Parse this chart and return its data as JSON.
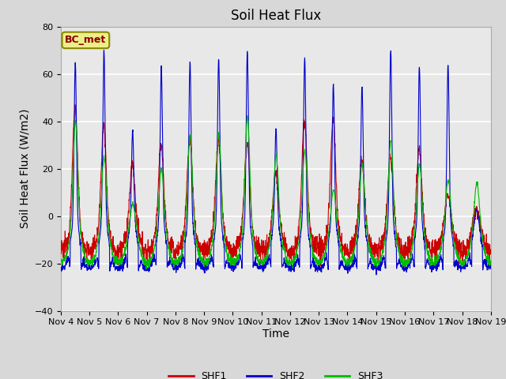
{
  "title": "Soil Heat Flux",
  "ylabel": "Soil Heat Flux (W/m2)",
  "xlabel": "Time",
  "ylim": [
    -40,
    80
  ],
  "yticks": [
    -40,
    -20,
    0,
    20,
    40,
    60,
    80
  ],
  "colors": {
    "SHF1": "#cc0000",
    "SHF2": "#0000cc",
    "SHF3": "#00bb00"
  },
  "legend_label": "BC_met",
  "legend_box_facecolor": "#eeee88",
  "legend_box_edgecolor": "#888800",
  "legend_text_color": "#880000",
  "plot_bg_color": "#e8e8e8",
  "fig_bg_color": "#d8d8d8",
  "grid_color": "#ffffff",
  "start_day": 4,
  "end_day": 19,
  "num_days": 15,
  "points_per_day": 144,
  "title_fontsize": 12,
  "axis_label_fontsize": 10,
  "tick_fontsize": 8,
  "day_peaks_shf2": [
    65,
    70,
    36,
    63,
    65,
    67,
    70,
    37,
    67,
    56,
    55,
    70,
    63,
    64,
    3
  ],
  "day_peaks_shf1": [
    46,
    38,
    22,
    30,
    33,
    32,
    31,
    18,
    41,
    41,
    24,
    25,
    28,
    9,
    3
  ],
  "day_peaks_shf3": [
    40,
    25,
    5,
    20,
    34,
    35,
    42,
    26,
    28,
    11,
    22,
    32,
    22,
    15,
    14
  ],
  "night_shf1": -15,
  "night_shf2": -22,
  "night_shf3": -20,
  "shf2_min_night": -30
}
